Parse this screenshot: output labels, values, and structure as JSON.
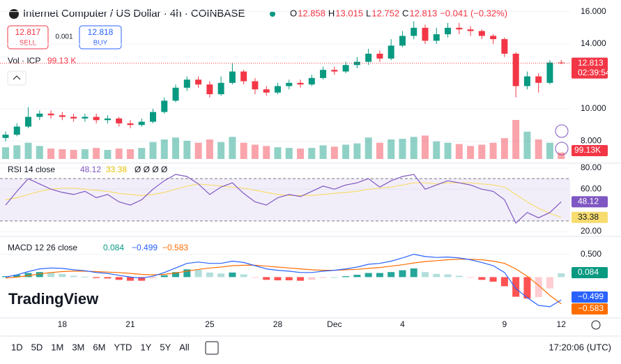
{
  "chart_data": {
    "type": "candlestick",
    "title": "Internet Computer / US Dollar · 4h · COINBASE",
    "ohlc_keys": [
      "O",
      "H",
      "L",
      "C"
    ],
    "change_label": "−0.041 (−0.32%)",
    "countdown": "02:39:54",
    "up_color": "#089981",
    "down_color": "#f23645",
    "categories": [
      null,
      null,
      null,
      null,
      null,
      "18",
      null,
      null,
      null,
      null,
      null,
      "21",
      null,
      null,
      null,
      null,
      null,
      null,
      "25",
      null,
      null,
      null,
      null,
      null,
      "28",
      null,
      null,
      null,
      null,
      "Dec",
      null,
      null,
      null,
      null,
      null,
      "4",
      null,
      null,
      null,
      null,
      null,
      null,
      null,
      null,
      "9",
      null,
      null,
      null,
      null,
      "12"
    ],
    "open": [
      8.2,
      8.4,
      8.9,
      9.5,
      9.7,
      9.6,
      9.5,
      9.4,
      9.5,
      9.3,
      9.4,
      9.1,
      9.0,
      9.2,
      9.8,
      10.5,
      11.3,
      11.8,
      11.5,
      10.9,
      11.6,
      12.3,
      11.7,
      11.2,
      11.0,
      11.4,
      11.6,
      11.5,
      11.9,
      12.4,
      12.3,
      12.7,
      12.9,
      13.4,
      13.1,
      13.9,
      14.5,
      15.0,
      14.2,
      14.6,
      15.0,
      14.9,
      14.8,
      14.5,
      14.3,
      13.4,
      11.4,
      12.0,
      11.6,
      12.858
    ],
    "high": [
      8.6,
      9.1,
      10.1,
      9.9,
      9.9,
      9.8,
      9.7,
      9.7,
      9.7,
      9.6,
      9.5,
      9.3,
      9.4,
      10.0,
      10.7,
      11.5,
      12.0,
      12.0,
      11.7,
      12.0,
      12.8,
      12.4,
      11.9,
      11.4,
      11.6,
      11.8,
      11.8,
      12.1,
      12.6,
      12.6,
      12.9,
      13.2,
      13.7,
      13.6,
      14.3,
      14.8,
      15.4,
      15.2,
      15.0,
      15.3,
      15.3,
      15.1,
      14.9,
      14.6,
      14.4,
      13.5,
      12.3,
      12.2,
      13.0,
      13.015
    ],
    "low": [
      8.0,
      8.3,
      8.8,
      9.3,
      9.4,
      9.3,
      9.2,
      9.2,
      9.1,
      9.1,
      8.9,
      8.8,
      8.9,
      9.1,
      9.7,
      10.4,
      11.1,
      11.3,
      10.7,
      10.8,
      11.5,
      11.5,
      10.9,
      10.8,
      10.9,
      11.2,
      11.3,
      11.4,
      11.8,
      12.1,
      12.2,
      12.5,
      12.7,
      12.9,
      13.0,
      13.8,
      14.3,
      14.0,
      14.0,
      14.4,
      14.6,
      14.5,
      14.3,
      14.0,
      13.2,
      10.7,
      11.2,
      11.0,
      11.5,
      12.752
    ],
    "close": [
      8.4,
      8.9,
      9.5,
      9.7,
      9.6,
      9.5,
      9.4,
      9.5,
      9.3,
      9.4,
      9.1,
      9.0,
      9.2,
      9.8,
      10.5,
      11.3,
      11.8,
      11.5,
      10.9,
      11.6,
      12.3,
      11.7,
      11.2,
      11.0,
      11.4,
      11.6,
      11.5,
      11.9,
      12.4,
      12.3,
      12.7,
      12.9,
      13.4,
      13.1,
      13.9,
      14.5,
      15.0,
      14.2,
      14.6,
      15.0,
      14.9,
      14.8,
      14.5,
      14.3,
      13.4,
      11.4,
      12.0,
      11.6,
      12.854,
      12.813
    ],
    "ylim": [
      6.9,
      16.5
    ],
    "yticks": [
      {
        "value": 16,
        "label": "16.000"
      },
      {
        "value": 14,
        "label": "14.000"
      },
      {
        "value": 10,
        "label": "10.000"
      },
      {
        "value": 8,
        "label": "8.000"
      }
    ],
    "volume": {
      "name": "Vol · ICP",
      "legend_label": "99.13 K",
      "axis_label": "99.13K",
      "values": [
        180000,
        210000,
        250000,
        200000,
        160000,
        150000,
        140000,
        150000,
        170000,
        140000,
        160000,
        150000,
        170000,
        260000,
        300000,
        330000,
        280000,
        250000,
        300000,
        260000,
        340000,
        250000,
        220000,
        200000,
        180000,
        170000,
        160000,
        170000,
        210000,
        190000,
        220000,
        240000,
        330000,
        250000,
        300000,
        310000,
        340000,
        360000,
        270000,
        250000,
        230000,
        200000,
        220000,
        250000,
        320000,
        600000,
        420000,
        300000,
        250000,
        99130
      ]
    },
    "rsi": {
      "name": "RSI 14 close",
      "extra": "Ø Ø Ø Ø",
      "color": "#7e57c2",
      "ma_color": "#f7dc6f",
      "values": [
        45,
        58,
        70,
        65,
        60,
        57,
        55,
        58,
        52,
        55,
        48,
        45,
        50,
        60,
        68,
        74,
        72,
        65,
        55,
        62,
        66,
        56,
        48,
        45,
        52,
        55,
        53,
        58,
        63,
        60,
        64,
        66,
        70,
        62,
        68,
        72,
        74,
        60,
        64,
        68,
        66,
        64,
        60,
        58,
        50,
        28,
        38,
        33,
        38,
        48.12
      ],
      "ma_values": [
        50,
        52,
        55,
        58,
        60,
        61,
        61,
        60,
        59,
        58,
        56,
        55,
        54,
        55,
        57,
        60,
        63,
        65,
        64,
        63,
        62,
        61,
        59,
        57,
        55,
        54,
        54,
        54,
        55,
        56,
        57,
        58,
        60,
        61,
        62,
        64,
        66,
        66,
        65,
        66,
        66,
        66,
        65,
        64,
        62,
        55,
        48,
        42,
        37,
        33.38
      ],
      "ylim": [
        20,
        80
      ],
      "bands": [
        30,
        70
      ],
      "yticks": [
        {
          "value": 80,
          "label": "80.00"
        },
        {
          "value": 60,
          "label": "60.00"
        },
        {
          "value": 20,
          "label": "20.00"
        }
      ]
    },
    "macd": {
      "name": "MACD 12 26 close",
      "macd_color": "#2962ff",
      "signal_color": "#ff6d00",
      "macd_label": "−0.499",
      "signal_label": "−0.583",
      "macd": [
        0.0,
        0.05,
        0.12,
        0.18,
        0.2,
        0.19,
        0.16,
        0.14,
        0.1,
        0.08,
        0.04,
        0.0,
        -0.02,
        0.02,
        0.1,
        0.2,
        0.3,
        0.33,
        0.3,
        0.3,
        0.35,
        0.32,
        0.25,
        0.18,
        0.15,
        0.13,
        0.1,
        0.1,
        0.13,
        0.15,
        0.18,
        0.22,
        0.28,
        0.3,
        0.35,
        0.42,
        0.5,
        0.45,
        0.43,
        0.44,
        0.42,
        0.38,
        0.32,
        0.25,
        0.1,
        -0.25,
        -0.45,
        -0.62,
        -0.65,
        -0.499
      ],
      "signal": [
        -0.02,
        0.0,
        0.03,
        0.07,
        0.1,
        0.12,
        0.13,
        0.13,
        0.12,
        0.11,
        0.1,
        0.08,
        0.06,
        0.05,
        0.06,
        0.09,
        0.13,
        0.17,
        0.2,
        0.22,
        0.25,
        0.26,
        0.26,
        0.24,
        0.22,
        0.2,
        0.18,
        0.16,
        0.15,
        0.15,
        0.16,
        0.17,
        0.19,
        0.21,
        0.24,
        0.27,
        0.31,
        0.34,
        0.36,
        0.38,
        0.39,
        0.39,
        0.38,
        0.35,
        0.3,
        0.18,
        0.02,
        -0.18,
        -0.4,
        -0.583
      ],
      "hist": [
        0.02,
        0.05,
        0.09,
        0.11,
        0.1,
        0.07,
        0.03,
        0.01,
        -0.02,
        -0.03,
        -0.06,
        -0.08,
        -0.08,
        -0.03,
        0.04,
        0.11,
        0.17,
        0.16,
        0.1,
        0.08,
        0.1,
        0.06,
        -0.01,
        -0.06,
        -0.07,
        -0.07,
        -0.08,
        -0.06,
        -0.02,
        0.0,
        0.02,
        0.05,
        0.09,
        0.09,
        0.11,
        0.15,
        0.19,
        0.11,
        0.07,
        0.06,
        0.03,
        -0.01,
        -0.06,
        -0.1,
        -0.2,
        -0.43,
        -0.47,
        -0.44,
        -0.25,
        0.084
      ],
      "ylim": [
        -0.88,
        0.8
      ],
      "yticks": [
        {
          "value": 0.5,
          "label": "0.500"
        }
      ]
    }
  },
  "trade": {
    "sell_price": "12.817",
    "sell": "SELL",
    "spread": "0.001",
    "buy_price": "12.818",
    "buy": "BUY"
  },
  "ui": {
    "logo": "TradingView",
    "ranges": [
      "1D",
      "5D",
      "1M",
      "3M",
      "6M",
      "YTD",
      "1Y",
      "5Y",
      "All"
    ],
    "time": "17:20:06 (UTC)"
  }
}
